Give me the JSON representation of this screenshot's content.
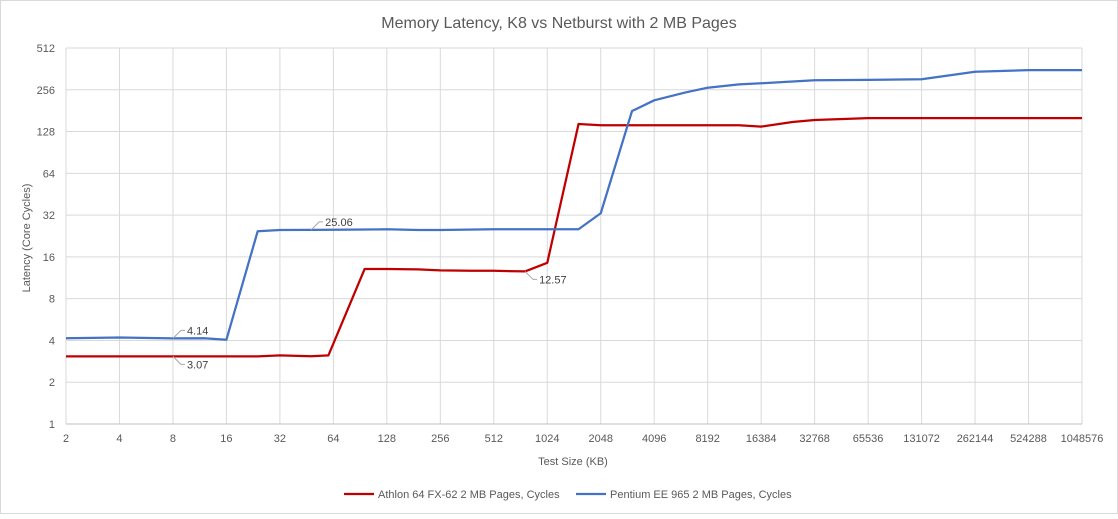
{
  "chart_data": {
    "type": "line",
    "title": "Memory Latency, K8 vs Netburst with 2 MB Pages",
    "xlabel": "Test Size (KB)",
    "ylabel": "Latency (Core Cycles)",
    "x_scale": "log2",
    "y_scale": "log2",
    "x_ticks": [
      "2",
      "4",
      "8",
      "16",
      "32",
      "64",
      "128",
      "256",
      "512",
      "1024",
      "2048",
      "4096",
      "8192",
      "16384",
      "32768",
      "65536",
      "131072",
      "262144",
      "524288",
      "1048576"
    ],
    "y_ticks": [
      "1",
      "2",
      "4",
      "8",
      "16",
      "32",
      "64",
      "128",
      "256",
      "512"
    ],
    "xlim": [
      2,
      1048576
    ],
    "ylim": [
      1,
      512
    ],
    "grid": true,
    "legend_position": "bottom",
    "series": [
      {
        "name": "Athlon 64 FX-62 2 MB Pages, Cycles",
        "color": "#c00000",
        "points": [
          [
            2,
            3.07
          ],
          [
            4,
            3.07
          ],
          [
            8,
            3.07
          ],
          [
            12,
            3.07
          ],
          [
            16,
            3.07
          ],
          [
            24,
            3.07
          ],
          [
            32,
            3.12
          ],
          [
            48,
            3.08
          ],
          [
            60,
            3.12
          ],
          [
            96,
            13.1
          ],
          [
            128,
            13.1
          ],
          [
            192,
            13.0
          ],
          [
            256,
            12.8
          ],
          [
            384,
            12.7
          ],
          [
            512,
            12.7
          ],
          [
            768,
            12.57
          ],
          [
            1024,
            14.5
          ],
          [
            1536,
            145
          ],
          [
            2048,
            142
          ],
          [
            4096,
            142
          ],
          [
            8192,
            142
          ],
          [
            12288,
            142
          ],
          [
            16384,
            139
          ],
          [
            24576,
            150
          ],
          [
            32768,
            155
          ],
          [
            65536,
            160
          ],
          [
            131072,
            160
          ],
          [
            262144,
            160
          ],
          [
            524288,
            160
          ],
          [
            1048576,
            160
          ]
        ],
        "labels": [
          {
            "x": 8,
            "y": 3.07,
            "text": "3.07"
          },
          {
            "x": 768,
            "y": 12.57,
            "text": "12.57"
          }
        ]
      },
      {
        "name": "Pentium EE 965 2 MB Pages, Cycles",
        "color": "#4472c4",
        "points": [
          [
            2,
            4.15
          ],
          [
            4,
            4.2
          ],
          [
            8,
            4.14
          ],
          [
            12,
            4.15
          ],
          [
            16,
            4.05
          ],
          [
            24,
            24.5
          ],
          [
            32,
            25.0
          ],
          [
            48,
            25.06
          ],
          [
            64,
            25.1
          ],
          [
            128,
            25.3
          ],
          [
            192,
            25.0
          ],
          [
            256,
            25.0
          ],
          [
            512,
            25.3
          ],
          [
            1024,
            25.3
          ],
          [
            1536,
            25.3
          ],
          [
            2048,
            33
          ],
          [
            3072,
            180
          ],
          [
            4096,
            215
          ],
          [
            6144,
            245
          ],
          [
            8192,
            265
          ],
          [
            12288,
            280
          ],
          [
            16384,
            285
          ],
          [
            32768,
            300
          ],
          [
            65536,
            302
          ],
          [
            131072,
            305
          ],
          [
            262144,
            345
          ],
          [
            524288,
            355
          ],
          [
            1048576,
            355
          ]
        ],
        "labels": [
          {
            "x": 8,
            "y": 4.14,
            "text": "4.14"
          },
          {
            "x": 48,
            "y": 25.06,
            "text": "25.06"
          }
        ]
      }
    ]
  }
}
